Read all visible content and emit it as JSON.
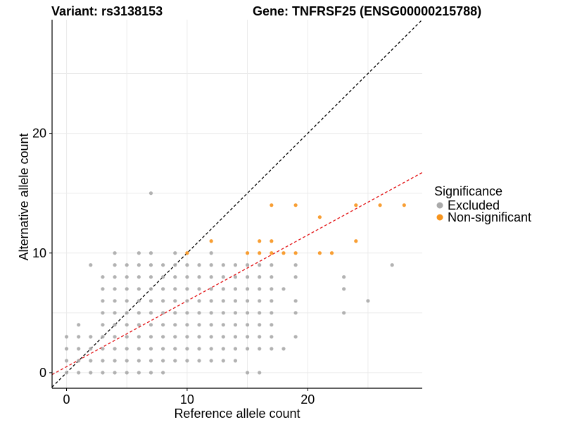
{
  "chart_data": {
    "type": "scatter",
    "title_left": "Variant: rs3138153",
    "title_right": "Gene: TNFRSF25 (ENSG00000215788)",
    "xlabel": "Reference allele count",
    "ylabel": "Alternative allele count",
    "xlim": [
      -1.2,
      29.5
    ],
    "ylim": [
      -1.3,
      29.5
    ],
    "x_ticks": [
      0,
      10,
      20
    ],
    "y_ticks": [
      0,
      10,
      20
    ],
    "grid": true,
    "legend": {
      "title": "Significance",
      "position": "right",
      "entries": [
        {
          "label": "Excluded",
          "color": "#aaaaaa"
        },
        {
          "label": "Non-significant",
          "color": "#f7941d"
        }
      ]
    },
    "reference_lines": [
      {
        "name": "identity",
        "slope": 1.0,
        "intercept": 0,
        "color": "#000000",
        "dashed": true
      },
      {
        "name": "fit",
        "slope": 0.55,
        "intercept": 0.5,
        "color": "#e41a1c",
        "dashed": true
      }
    ],
    "series": [
      {
        "name": "Excluded",
        "color": "#aaaaaa",
        "points": [
          [
            0,
            0
          ],
          [
            0,
            1
          ],
          [
            0,
            2
          ],
          [
            0,
            3
          ],
          [
            1,
            0
          ],
          [
            1,
            1
          ],
          [
            1,
            2
          ],
          [
            1,
            3
          ],
          [
            1,
            4
          ],
          [
            2,
            0
          ],
          [
            2,
            1
          ],
          [
            2,
            2
          ],
          [
            2,
            3
          ],
          [
            2,
            9
          ],
          [
            3,
            0
          ],
          [
            3,
            1
          ],
          [
            3,
            2
          ],
          [
            3,
            3
          ],
          [
            3,
            4
          ],
          [
            3,
            5
          ],
          [
            3,
            6
          ],
          [
            3,
            7
          ],
          [
            3,
            8
          ],
          [
            4,
            0
          ],
          [
            4,
            1
          ],
          [
            4,
            2
          ],
          [
            4,
            3
          ],
          [
            4,
            4
          ],
          [
            4,
            5
          ],
          [
            4,
            6
          ],
          [
            4,
            7
          ],
          [
            4,
            8
          ],
          [
            4,
            9
          ],
          [
            4,
            10
          ],
          [
            5,
            0
          ],
          [
            5,
            1
          ],
          [
            5,
            2
          ],
          [
            5,
            3
          ],
          [
            5,
            4
          ],
          [
            5,
            5
          ],
          [
            5,
            6
          ],
          [
            5,
            7
          ],
          [
            5,
            8
          ],
          [
            5,
            9
          ],
          [
            6,
            0
          ],
          [
            6,
            1
          ],
          [
            6,
            2
          ],
          [
            6,
            3
          ],
          [
            6,
            4
          ],
          [
            6,
            5
          ],
          [
            6,
            6
          ],
          [
            6,
            7
          ],
          [
            6,
            8
          ],
          [
            6,
            9
          ],
          [
            6,
            10
          ],
          [
            7,
            0
          ],
          [
            7,
            1
          ],
          [
            7,
            2
          ],
          [
            7,
            3
          ],
          [
            7,
            4
          ],
          [
            7,
            5
          ],
          [
            7,
            6
          ],
          [
            7,
            7
          ],
          [
            7,
            8
          ],
          [
            7,
            9
          ],
          [
            7,
            10
          ],
          [
            7,
            15
          ],
          [
            8,
            0
          ],
          [
            8,
            1
          ],
          [
            8,
            2
          ],
          [
            8,
            3
          ],
          [
            8,
            4
          ],
          [
            8,
            5
          ],
          [
            8,
            6
          ],
          [
            8,
            7
          ],
          [
            8,
            8
          ],
          [
            8,
            9
          ],
          [
            9,
            1
          ],
          [
            9,
            2
          ],
          [
            9,
            3
          ],
          [
            9,
            4
          ],
          [
            9,
            5
          ],
          [
            9,
            6
          ],
          [
            9,
            7
          ],
          [
            9,
            8
          ],
          [
            9,
            9
          ],
          [
            9,
            10
          ],
          [
            10,
            1
          ],
          [
            10,
            2
          ],
          [
            10,
            3
          ],
          [
            10,
            4
          ],
          [
            10,
            5
          ],
          [
            10,
            6
          ],
          [
            10,
            7
          ],
          [
            10,
            8
          ],
          [
            10,
            9
          ],
          [
            11,
            1
          ],
          [
            11,
            2
          ],
          [
            11,
            3
          ],
          [
            11,
            4
          ],
          [
            11,
            5
          ],
          [
            11,
            6
          ],
          [
            11,
            7
          ],
          [
            11,
            8
          ],
          [
            11,
            9
          ],
          [
            12,
            1
          ],
          [
            12,
            2
          ],
          [
            12,
            3
          ],
          [
            12,
            4
          ],
          [
            12,
            5
          ],
          [
            12,
            6
          ],
          [
            12,
            7
          ],
          [
            12,
            8
          ],
          [
            12,
            9
          ],
          [
            12,
            10
          ],
          [
            13,
            1
          ],
          [
            13,
            2
          ],
          [
            13,
            3
          ],
          [
            13,
            4
          ],
          [
            13,
            5
          ],
          [
            13,
            6
          ],
          [
            13,
            7
          ],
          [
            13,
            8
          ],
          [
            13,
            9
          ],
          [
            14,
            1
          ],
          [
            14,
            2
          ],
          [
            14,
            3
          ],
          [
            14,
            4
          ],
          [
            14,
            5
          ],
          [
            14,
            6
          ],
          [
            14,
            7
          ],
          [
            14,
            8
          ],
          [
            14,
            9
          ],
          [
            15,
            0
          ],
          [
            15,
            2
          ],
          [
            15,
            3
          ],
          [
            15,
            4
          ],
          [
            15,
            5
          ],
          [
            15,
            6
          ],
          [
            15,
            7
          ],
          [
            15,
            8
          ],
          [
            15,
            9
          ],
          [
            16,
            0
          ],
          [
            16,
            2
          ],
          [
            16,
            3
          ],
          [
            16,
            4
          ],
          [
            16,
            5
          ],
          [
            16,
            6
          ],
          [
            16,
            7
          ],
          [
            16,
            8
          ],
          [
            16,
            9
          ],
          [
            17,
            2
          ],
          [
            17,
            3
          ],
          [
            17,
            4
          ],
          [
            17,
            5
          ],
          [
            17,
            6
          ],
          [
            17,
            7
          ],
          [
            17,
            8
          ],
          [
            17,
            9
          ],
          [
            18,
            2
          ],
          [
            18,
            7
          ],
          [
            19,
            3
          ],
          [
            19,
            5
          ],
          [
            19,
            6
          ],
          [
            19,
            8
          ],
          [
            19,
            9
          ],
          [
            23,
            5
          ],
          [
            23,
            7
          ],
          [
            23,
            8
          ],
          [
            25,
            6
          ],
          [
            27,
            9
          ]
        ]
      },
      {
        "name": "Non-significant",
        "color": "#f7941d",
        "points": [
          [
            10,
            10
          ],
          [
            12,
            11
          ],
          [
            15,
            10
          ],
          [
            16,
            10
          ],
          [
            16,
            11
          ],
          [
            17,
            10
          ],
          [
            17,
            11
          ],
          [
            17,
            14
          ],
          [
            18,
            10
          ],
          [
            19,
            10
          ],
          [
            19,
            14
          ],
          [
            21,
            10
          ],
          [
            21,
            13
          ],
          [
            22,
            10
          ],
          [
            24,
            11
          ],
          [
            24,
            14
          ],
          [
            26,
            14
          ],
          [
            28,
            14
          ]
        ]
      }
    ]
  }
}
